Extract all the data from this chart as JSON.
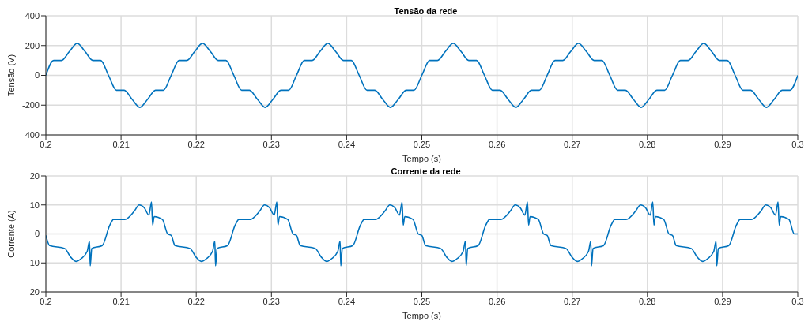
{
  "chart_data": [
    {
      "type": "line",
      "title": "Tensão da rede",
      "xlabel": "Tempo (s)",
      "ylabel": "Tensão (V)",
      "xlim": [
        0.2,
        0.3
      ],
      "xticks": [
        0.2,
        0.21,
        0.22,
        0.23,
        0.24,
        0.25,
        0.26,
        0.27,
        0.28,
        0.29,
        0.3
      ],
      "ylim": [
        -400,
        400
      ],
      "yticks": [
        -400,
        -200,
        0,
        200,
        400
      ],
      "grid": true,
      "series": [
        {
          "color": "#0072bd",
          "x": [
            0.2,
            0.20104,
            0.20208,
            0.20313,
            0.20417,
            0.20521,
            0.20625,
            0.20729,
            0.20833,
            0.20938,
            0.21042,
            0.21146,
            0.2125,
            0.21354,
            0.21458,
            0.21563,
            0.21667,
            0.21771,
            0.21875,
            0.2198,
            0.22083,
            0.22188,
            0.22292,
            0.22396,
            0.225,
            0.22604,
            0.22708,
            0.22813,
            0.22917,
            0.23021,
            0.23125,
            0.2323,
            0.23333,
            0.23438,
            0.23542,
            0.23646,
            0.2375,
            0.23854,
            0.23958,
            0.24063,
            0.24167,
            0.24271,
            0.24375,
            0.24479,
            0.24583,
            0.24688,
            0.24792,
            0.24896,
            0.25,
            0.25104,
            0.25208,
            0.25313,
            0.25417,
            0.25521,
            0.25625,
            0.25729,
            0.25833,
            0.25938,
            0.26042,
            0.26146,
            0.2625,
            0.26354,
            0.26458,
            0.26563,
            0.26667,
            0.26771,
            0.26875,
            0.2698,
            0.27083,
            0.27188,
            0.27292,
            0.27396,
            0.275,
            0.27604,
            0.27708,
            0.27813,
            0.27917,
            0.28021,
            0.28125,
            0.2823,
            0.28333,
            0.28438,
            0.28542,
            0.28646,
            0.2875,
            0.28854,
            0.28958,
            0.29063,
            0.29167,
            0.29271,
            0.29375,
            0.29479,
            0.29583,
            0.29688,
            0.29792,
            0.29896,
            0.3
          ],
          "values": [
            0,
            100,
            100,
            160,
            215,
            160,
            100,
            100,
            0,
            -100,
            -100,
            -160,
            -215,
            -160,
            -100,
            -100,
            0,
            100,
            100,
            160,
            215,
            160,
            100,
            100,
            0,
            -100,
            -100,
            -160,
            -215,
            -160,
            -100,
            -100,
            0,
            100,
            100,
            160,
            215,
            160,
            100,
            100,
            0,
            -100,
            -100,
            -160,
            -215,
            -160,
            -100,
            -100,
            0,
            100,
            100,
            160,
            215,
            160,
            100,
            100,
            0,
            -100,
            -100,
            -160,
            -215,
            -160,
            -100,
            -100,
            0,
            100,
            100,
            160,
            215,
            160,
            100,
            100,
            0,
            -100,
            -100,
            -160,
            -215,
            -160,
            -100,
            -100,
            0,
            100,
            100,
            160,
            215,
            160,
            100,
            100,
            0,
            -100,
            -100,
            -160,
            -215,
            -160,
            -100,
            -100,
            0
          ]
        }
      ]
    },
    {
      "type": "line",
      "title": "Corrente da rede",
      "xlabel": "Tempo (s)",
      "ylabel": "Corrente (A)",
      "xlim": [
        0.2,
        0.3
      ],
      "xticks": [
        0.2,
        0.21,
        0.22,
        0.23,
        0.24,
        0.25,
        0.26,
        0.27,
        0.28,
        0.29,
        0.3
      ],
      "ylim": [
        -20,
        20
      ],
      "yticks": [
        -20,
        -10,
        0,
        10,
        20
      ],
      "grid": true,
      "series": [
        {
          "color": "#0072bd",
          "x": [
            0.2,
            0.2005,
            0.2025,
            0.2033,
            0.204,
            0.2047,
            0.2055,
            0.2058,
            0.2059,
            0.2061,
            0.2075,
            0.2085,
            0.209,
            0.2105,
            0.2118,
            0.2124,
            0.2131,
            0.2137,
            0.21405,
            0.2142,
            0.2144,
            0.2155,
            0.2162,
            0.21667,
            0.21717,
            0.21917,
            0.21997,
            0.22067,
            0.22137,
            0.22217,
            0.22247,
            0.22257,
            0.22277,
            0.22417,
            0.22517,
            0.22567,
            0.22717,
            0.22847,
            0.22907,
            0.22977,
            0.23037,
            0.23072,
            0.23087,
            0.23107,
            0.23217,
            0.23287,
            0.23333,
            0.23383,
            0.23583,
            0.23663,
            0.23733,
            0.23803,
            0.23883,
            0.23913,
            0.23923,
            0.23943,
            0.24083,
            0.24183,
            0.24233,
            0.24383,
            0.24513,
            0.24573,
            0.24643,
            0.24703,
            0.24738,
            0.24753,
            0.24773,
            0.24883,
            0.24953,
            0.25,
            0.2505,
            0.2525,
            0.2533,
            0.254,
            0.2547,
            0.2555,
            0.2558,
            0.2559,
            0.2561,
            0.2575,
            0.2585,
            0.259,
            0.2605,
            0.2618,
            0.2624,
            0.2631,
            0.2637,
            0.26405,
            0.2642,
            0.2644,
            0.2655,
            0.2662,
            0.26667,
            0.26717,
            0.26917,
            0.26997,
            0.27067,
            0.27137,
            0.27217,
            0.27247,
            0.27257,
            0.27277,
            0.27417,
            0.27517,
            0.27567,
            0.27717,
            0.27847,
            0.27907,
            0.27977,
            0.28037,
            0.28072,
            0.28087,
            0.28107,
            0.28217,
            0.28287,
            0.28333,
            0.28383,
            0.28583,
            0.28663,
            0.28733,
            0.28803,
            0.28883,
            0.28913,
            0.28923,
            0.28943,
            0.29083,
            0.29183,
            0.29233,
            0.29383,
            0.29513,
            0.29573,
            0.29643,
            0.29703,
            0.29738,
            0.29753,
            0.29773,
            0.29883,
            0.29953,
            0.3
          ],
          "values": [
            -0.5,
            -4,
            -5,
            -8,
            -9.5,
            -8.5,
            -6,
            -2.5,
            -11,
            -5,
            -4,
            3,
            5,
            5,
            8,
            10,
            9,
            6.5,
            11,
            3,
            6,
            5,
            0,
            -0.5,
            -4,
            -5,
            -8,
            -9.5,
            -8.5,
            -6,
            -2.5,
            -11,
            -5,
            -4,
            3,
            5,
            5,
            8,
            10,
            9,
            6.5,
            11,
            3,
            6,
            5,
            0,
            -0.5,
            -4,
            -5,
            -8,
            -9.5,
            -8.5,
            -6,
            -2.5,
            -11,
            -5,
            -4,
            3,
            5,
            5,
            8,
            10,
            9,
            6.5,
            11,
            3,
            6,
            5,
            0,
            -0.5,
            -4,
            -5,
            -8,
            -9.5,
            -8.5,
            -6,
            -2.5,
            -11,
            -5,
            -4,
            3,
            5,
            5,
            8,
            10,
            9,
            6.5,
            11,
            3,
            6,
            5,
            0,
            -0.5,
            -4,
            -5,
            -8,
            -9.5,
            -8.5,
            -6,
            -2.5,
            -11,
            -5,
            -4,
            3,
            5,
            5,
            8,
            10,
            9,
            6.5,
            11,
            3,
            6,
            5,
            0,
            -0.5,
            -4,
            -5,
            -8,
            -9.5,
            -8.5,
            -6,
            -2.5,
            -11,
            -5,
            -4,
            3,
            5,
            5,
            8,
            10,
            9,
            6.5,
            11,
            3,
            6,
            5,
            0,
            0
          ]
        }
      ]
    }
  ]
}
